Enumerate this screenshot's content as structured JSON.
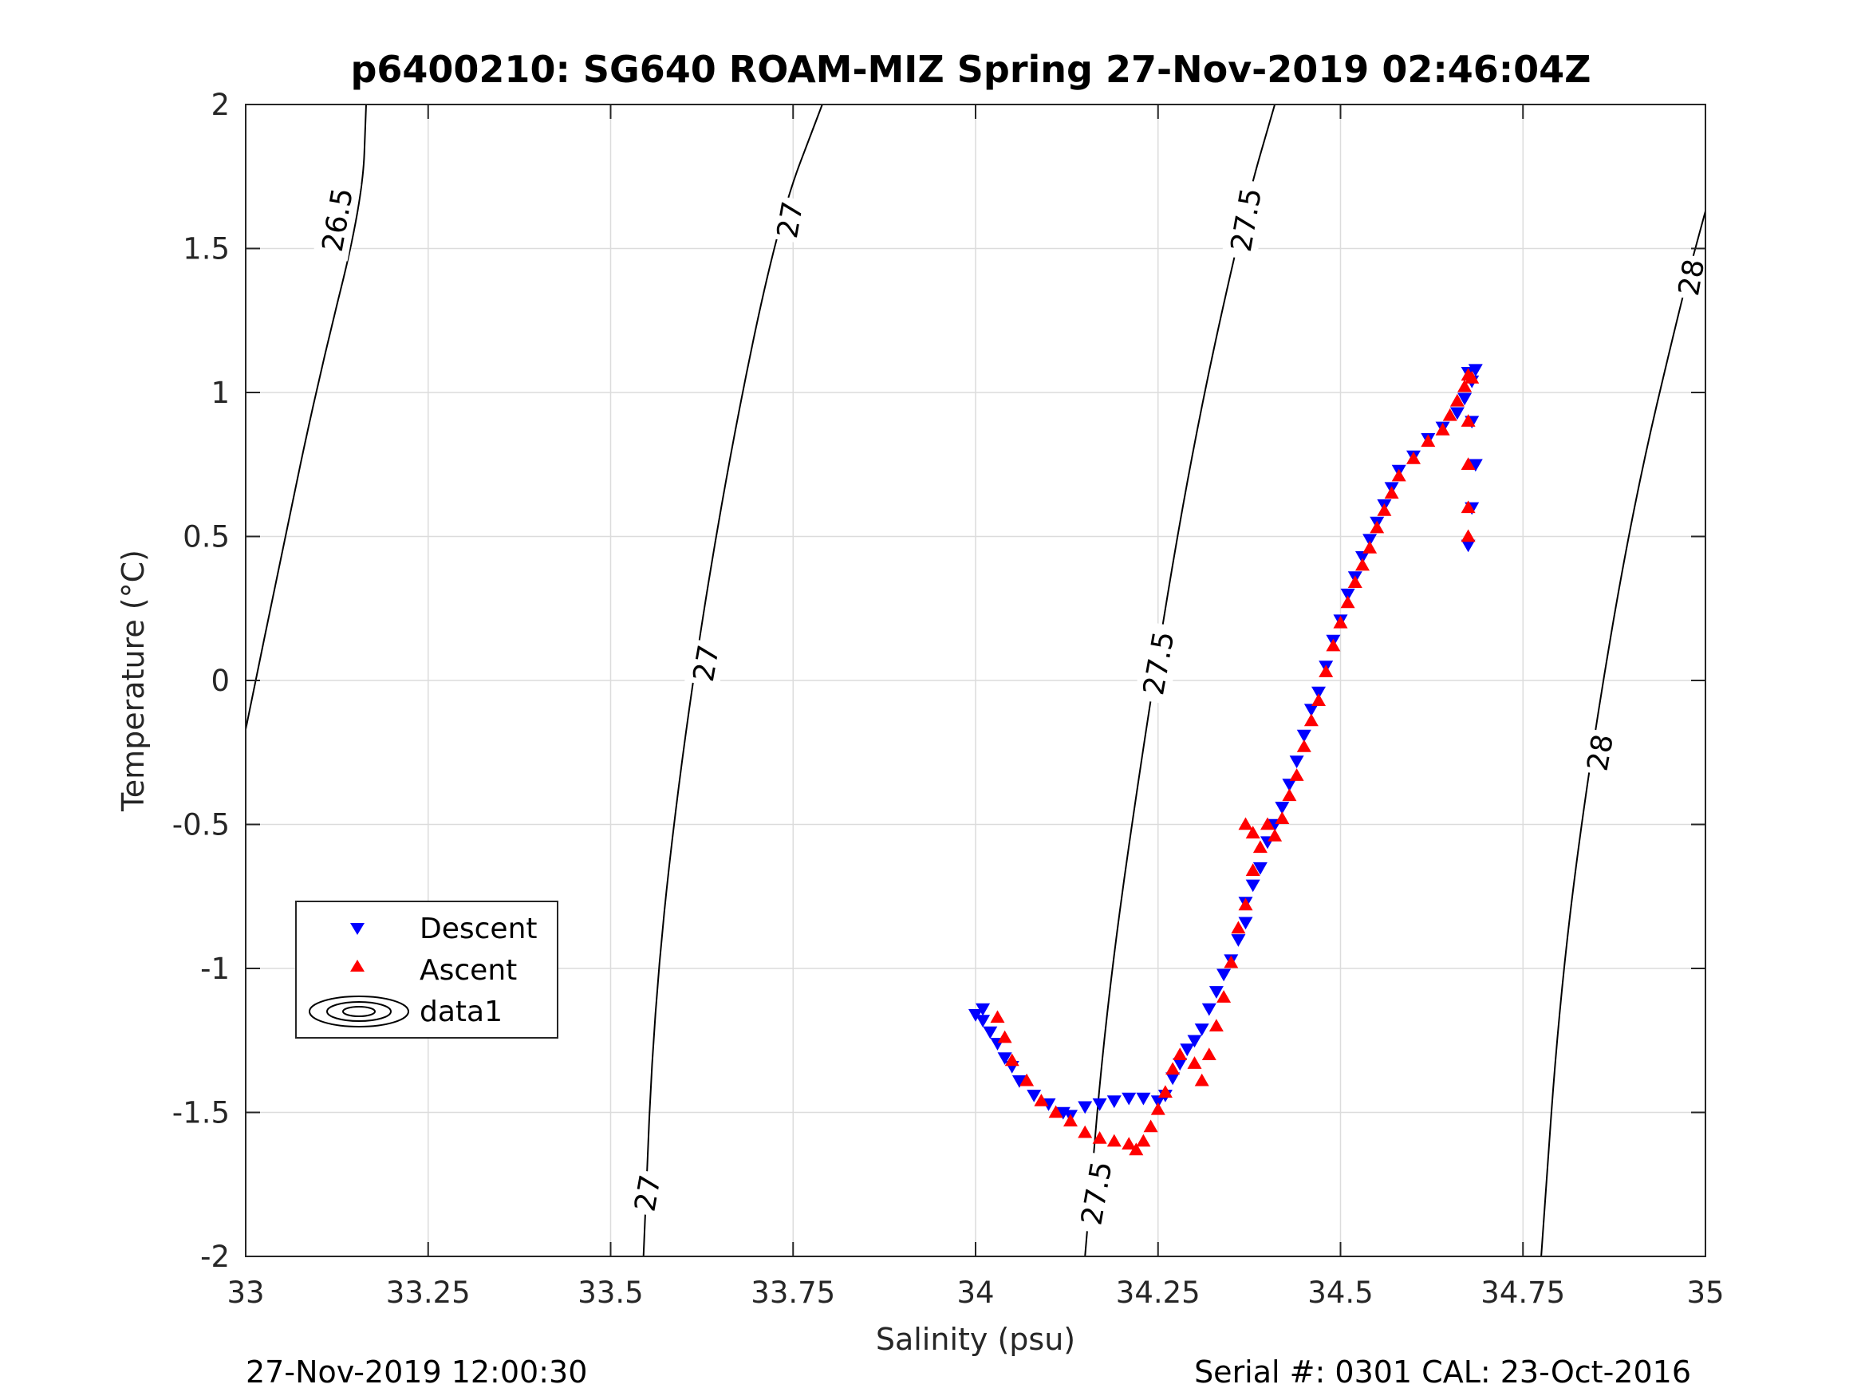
{
  "chart_data": {
    "type": "scatter",
    "title": "p6400210: SG640 ROAM-MIZ Spring 27-Nov-2019 02:46:04Z",
    "xlabel": "Salinity (psu)",
    "ylabel": "Temperature (°C)",
    "xlim": [
      33,
      35
    ],
    "ylim": [
      -2,
      2
    ],
    "xticks": [
      "33",
      "33.25",
      "33.5",
      "33.75",
      "34",
      "34.25",
      "34.5",
      "34.75",
      "35"
    ],
    "yticks": [
      "-2",
      "-1.5",
      "-1",
      "-0.5",
      "0",
      "0.5",
      "1",
      "1.5",
      "2"
    ],
    "grid": true,
    "legend_position": "lower-left",
    "legend": [
      "Descent",
      "Ascent",
      "data1"
    ],
    "series": [
      {
        "name": "Descent",
        "marker": "triangle-down",
        "color": "#0000ff",
        "points": [
          [
            34.0,
            -1.16
          ],
          [
            34.01,
            -1.14
          ],
          [
            34.01,
            -1.18
          ],
          [
            34.02,
            -1.22
          ],
          [
            34.03,
            -1.26
          ],
          [
            34.04,
            -1.31
          ],
          [
            34.05,
            -1.34
          ],
          [
            34.06,
            -1.39
          ],
          [
            34.08,
            -1.44
          ],
          [
            34.1,
            -1.47
          ],
          [
            34.12,
            -1.5
          ],
          [
            34.13,
            -1.51
          ],
          [
            34.15,
            -1.48
          ],
          [
            34.17,
            -1.47
          ],
          [
            34.19,
            -1.46
          ],
          [
            34.21,
            -1.45
          ],
          [
            34.23,
            -1.45
          ],
          [
            34.25,
            -1.46
          ],
          [
            34.26,
            -1.44
          ],
          [
            34.27,
            -1.38
          ],
          [
            34.28,
            -1.33
          ],
          [
            34.29,
            -1.28
          ],
          [
            34.3,
            -1.25
          ],
          [
            34.31,
            -1.21
          ],
          [
            34.32,
            -1.14
          ],
          [
            34.33,
            -1.08
          ],
          [
            34.34,
            -1.02
          ],
          [
            34.35,
            -0.97
          ],
          [
            34.36,
            -0.9
          ],
          [
            34.37,
            -0.84
          ],
          [
            34.37,
            -0.77
          ],
          [
            34.38,
            -0.71
          ],
          [
            34.39,
            -0.65
          ],
          [
            34.4,
            -0.56
          ],
          [
            34.41,
            -0.5
          ],
          [
            34.42,
            -0.44
          ],
          [
            34.43,
            -0.36
          ],
          [
            34.44,
            -0.28
          ],
          [
            34.45,
            -0.19
          ],
          [
            34.46,
            -0.1
          ],
          [
            34.47,
            -0.04
          ],
          [
            34.48,
            0.05
          ],
          [
            34.49,
            0.14
          ],
          [
            34.5,
            0.21
          ],
          [
            34.51,
            0.3
          ],
          [
            34.52,
            0.36
          ],
          [
            34.53,
            0.43
          ],
          [
            34.54,
            0.49
          ],
          [
            34.55,
            0.55
          ],
          [
            34.56,
            0.61
          ],
          [
            34.57,
            0.67
          ],
          [
            34.58,
            0.73
          ],
          [
            34.6,
            0.78
          ],
          [
            34.62,
            0.84
          ],
          [
            34.64,
            0.88
          ],
          [
            34.66,
            0.93
          ],
          [
            34.67,
            0.98
          ],
          [
            34.68,
            1.04
          ],
          [
            34.685,
            1.08
          ],
          [
            34.675,
            1.07
          ],
          [
            34.68,
            0.9
          ],
          [
            34.685,
            0.75
          ],
          [
            34.68,
            0.6
          ],
          [
            34.675,
            0.47
          ]
        ]
      },
      {
        "name": "Ascent",
        "marker": "triangle-up",
        "color": "#ff0000",
        "points": [
          [
            34.03,
            -1.17
          ],
          [
            34.04,
            -1.24
          ],
          [
            34.05,
            -1.32
          ],
          [
            34.07,
            -1.39
          ],
          [
            34.09,
            -1.46
          ],
          [
            34.11,
            -1.5
          ],
          [
            34.13,
            -1.53
          ],
          [
            34.15,
            -1.57
          ],
          [
            34.17,
            -1.59
          ],
          [
            34.19,
            -1.6
          ],
          [
            34.21,
            -1.61
          ],
          [
            34.22,
            -1.63
          ],
          [
            34.23,
            -1.6
          ],
          [
            34.24,
            -1.55
          ],
          [
            34.25,
            -1.49
          ],
          [
            34.26,
            -1.43
          ],
          [
            34.27,
            -1.35
          ],
          [
            34.28,
            -1.3
          ],
          [
            34.3,
            -1.33
          ],
          [
            34.31,
            -1.39
          ],
          [
            34.32,
            -1.3
          ],
          [
            34.33,
            -1.2
          ],
          [
            34.34,
            -1.1
          ],
          [
            34.35,
            -0.98
          ],
          [
            34.36,
            -0.86
          ],
          [
            34.37,
            -0.78
          ],
          [
            34.38,
            -0.66
          ],
          [
            34.39,
            -0.58
          ],
          [
            34.37,
            -0.5
          ],
          [
            34.38,
            -0.53
          ],
          [
            34.4,
            -0.5
          ],
          [
            34.41,
            -0.54
          ],
          [
            34.42,
            -0.48
          ],
          [
            34.43,
            -0.4
          ],
          [
            34.44,
            -0.33
          ],
          [
            34.45,
            -0.23
          ],
          [
            34.46,
            -0.14
          ],
          [
            34.47,
            -0.07
          ],
          [
            34.48,
            0.03
          ],
          [
            34.49,
            0.12
          ],
          [
            34.5,
            0.2
          ],
          [
            34.51,
            0.27
          ],
          [
            34.52,
            0.34
          ],
          [
            34.53,
            0.4
          ],
          [
            34.54,
            0.46
          ],
          [
            34.55,
            0.53
          ],
          [
            34.56,
            0.59
          ],
          [
            34.57,
            0.65
          ],
          [
            34.58,
            0.71
          ],
          [
            34.6,
            0.77
          ],
          [
            34.62,
            0.83
          ],
          [
            34.64,
            0.87
          ],
          [
            34.65,
            0.92
          ],
          [
            34.66,
            0.97
          ],
          [
            34.67,
            1.02
          ],
          [
            34.675,
            1.06
          ],
          [
            34.68,
            1.05
          ],
          [
            34.675,
            0.9
          ],
          [
            34.675,
            0.75
          ],
          [
            34.675,
            0.6
          ],
          [
            34.675,
            0.5
          ]
        ]
      }
    ],
    "contours": [
      {
        "label": "26.5",
        "points": [
          [
            33.0,
            -0.17
          ],
          [
            33.05,
            0.45
          ],
          [
            33.1,
            1.05
          ],
          [
            33.16,
            1.66
          ],
          [
            33.165,
            2.0
          ]
        ]
      },
      {
        "label": "27",
        "points": [
          [
            33.545,
            -2.0
          ],
          [
            33.56,
            -1.1
          ],
          [
            33.6,
            -0.2
          ],
          [
            33.66,
            0.75
          ],
          [
            33.73,
            1.6
          ],
          [
            33.79,
            2.0
          ]
        ]
      },
      {
        "label": "27.5",
        "points": [
          [
            34.15,
            -2.0
          ],
          [
            34.18,
            -1.1
          ],
          [
            34.24,
            -0.05
          ],
          [
            34.3,
            0.85
          ],
          [
            34.37,
            1.65
          ],
          [
            34.41,
            2.0
          ]
        ]
      },
      {
        "label": "28",
        "points": [
          [
            34.775,
            -2.0
          ],
          [
            34.8,
            -1.1
          ],
          [
            34.84,
            -0.3
          ],
          [
            34.9,
            0.6
          ],
          [
            34.97,
            1.35
          ],
          [
            35.0,
            1.63
          ]
        ]
      }
    ],
    "contour_labels": [
      {
        "text": "26.5",
        "x": 33.125,
        "y": 1.6
      },
      {
        "text": "27",
        "x": 33.745,
        "y": 1.6
      },
      {
        "text": "27",
        "x": 33.63,
        "y": 0.06
      },
      {
        "text": "27",
        "x": 33.55,
        "y": -1.78
      },
      {
        "text": "27.5",
        "x": 34.37,
        "y": 1.6
      },
      {
        "text": "27.5",
        "x": 34.25,
        "y": 0.06
      },
      {
        "text": "27.5",
        "x": 34.165,
        "y": -1.78
      },
      {
        "text": "28",
        "x": 34.98,
        "y": 1.4
      },
      {
        "text": "28",
        "x": 34.855,
        "y": -0.25
      }
    ]
  },
  "footer": {
    "left": "27-Nov-2019 12:00:30",
    "right": "Serial #: 0301  CAL: 23-Oct-2016"
  }
}
